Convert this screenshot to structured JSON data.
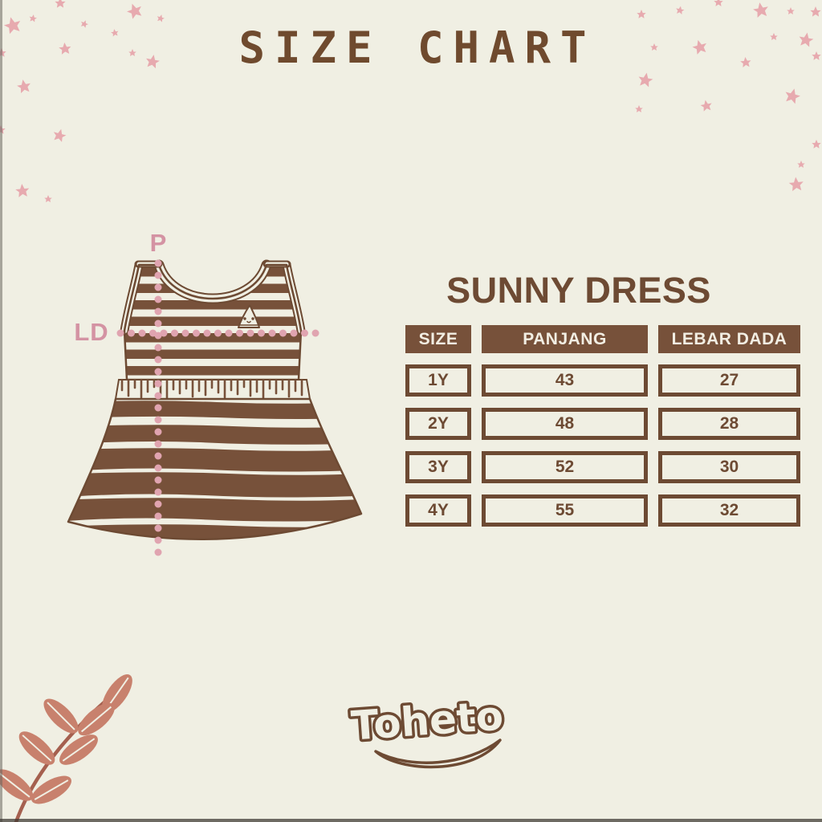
{
  "page_title": "SIZE CHART",
  "product": {
    "name": "SUNNY DRESS"
  },
  "measurements": {
    "length_label": "P",
    "chest_label": "LD"
  },
  "size_table": {
    "headers": {
      "size": "SIZE",
      "length": "PANJANG",
      "chest": "LEBAR DADA"
    },
    "rows": [
      {
        "size": "1Y",
        "panjang": "43",
        "lebar_dada": "27"
      },
      {
        "size": "2Y",
        "panjang": "48",
        "lebar_dada": "28"
      },
      {
        "size": "3Y",
        "panjang": "52",
        "lebar_dada": "30"
      },
      {
        "size": "4Y",
        "panjang": "55",
        "lebar_dada": "32"
      }
    ]
  },
  "brand": {
    "logo_text": "Toheto"
  },
  "icons": {
    "stars": "star-icon",
    "leaf": "leaf-branch-icon",
    "dress": "dress-illustration"
  },
  "chart_data": {
    "type": "table",
    "title": "SUNNY DRESS",
    "columns": [
      "SIZE",
      "PANJANG",
      "LEBAR DADA"
    ],
    "rows": [
      [
        "1Y",
        43,
        27
      ],
      [
        "2Y",
        48,
        28
      ],
      [
        "3Y",
        52,
        30
      ],
      [
        "4Y",
        55,
        32
      ]
    ]
  },
  "colors": {
    "background": "#F0EFE3",
    "brown": "#77513A",
    "brown_dark": "#6D4A33",
    "title_brown": "#6F4A2E",
    "header_text": "#F2EEE3",
    "star_pink": "#E7AAAF",
    "measure_pink": "#E0A4B0",
    "measure_label_pink": "#D493A3",
    "leaf": "#C8816D",
    "stem": "#A5604F"
  }
}
